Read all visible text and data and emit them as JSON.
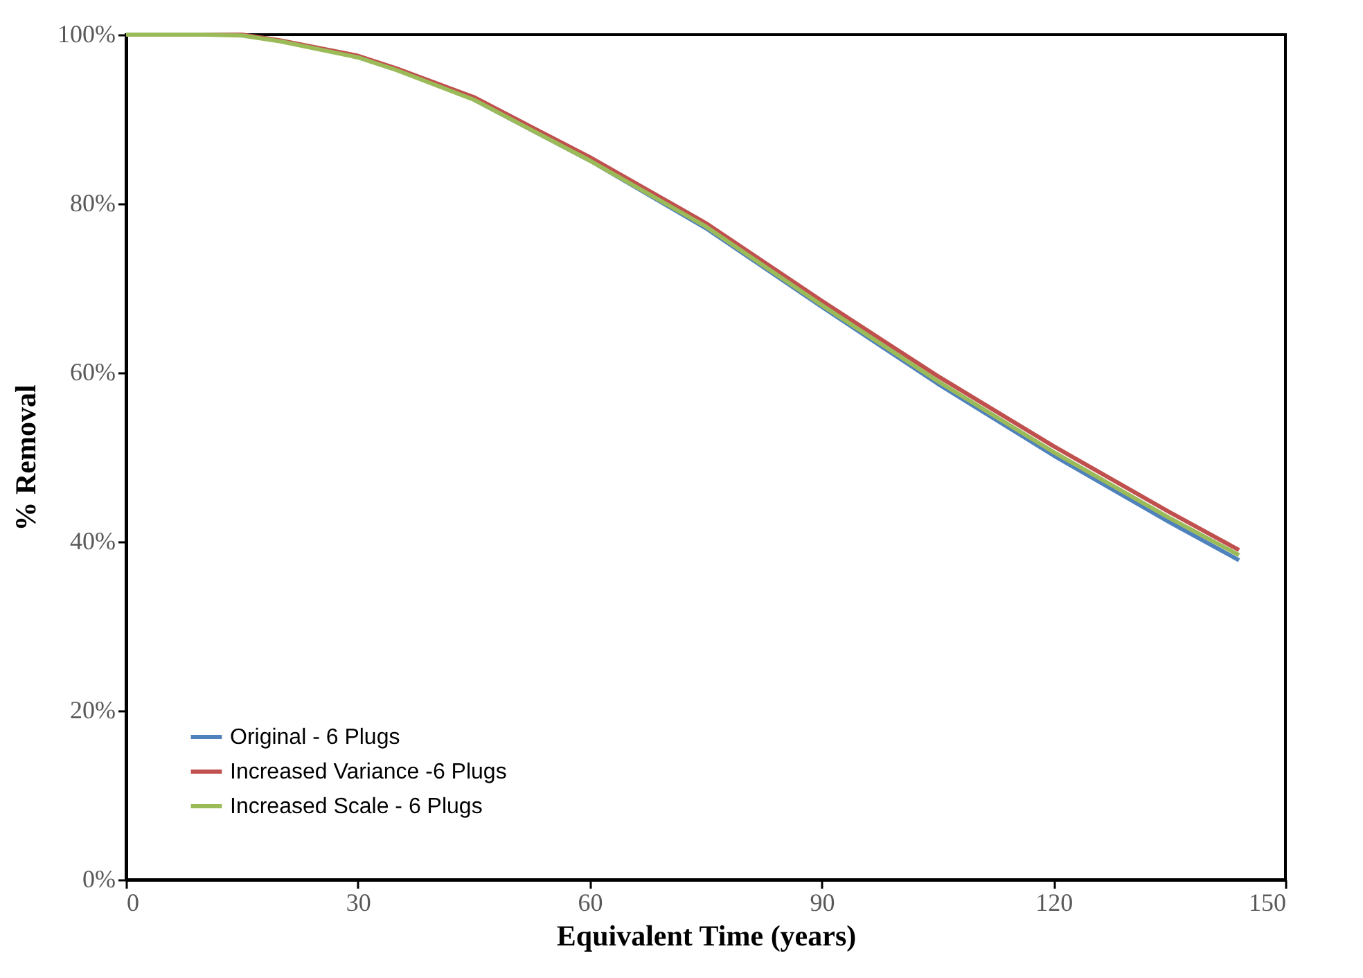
{
  "chart_data": {
    "type": "line",
    "xlabel": "Equivalent Time (years)",
    "ylabel": "% Removal",
    "x": [
      0,
      10,
      15,
      20,
      30,
      35,
      45,
      60,
      75,
      90,
      105,
      120,
      135,
      144
    ],
    "series": [
      {
        "name": "Original - 6 Plugs",
        "color": "#4f81bd",
        "values": [
          null,
          null,
          null,
          null,
          null,
          null,
          92.3,
          85.1,
          77.1,
          67.8,
          58.7,
          50.2,
          42.3,
          37.8
        ]
      },
      {
        "name": "Increased Variance -6 Plugs",
        "color": "#c0504d",
        "values": [
          100,
          100,
          100,
          99.3,
          97.5,
          96.0,
          92.6,
          85.5,
          77.7,
          68.5,
          59.6,
          51.3,
          43.5,
          39.0
        ]
      },
      {
        "name": "Increased Scale - 6 Plugs",
        "color": "#9bbb59",
        "values": [
          100,
          100,
          99.9,
          99.2,
          97.3,
          95.8,
          92.3,
          85.1,
          77.3,
          68.0,
          59.0,
          50.6,
          42.8,
          38.4
        ]
      }
    ],
    "xlim": [
      0,
      150
    ],
    "xticks": [
      0,
      30,
      60,
      90,
      120,
      150
    ],
    "ylim": [
      0,
      100
    ],
    "yticks": [
      {
        "value": 0,
        "label": "0%"
      },
      {
        "value": 20,
        "label": "20%"
      },
      {
        "value": 40,
        "label": "40%"
      },
      {
        "value": 60,
        "label": "60%"
      },
      {
        "value": 80,
        "label": "80%"
      },
      {
        "value": 100,
        "label": "100%"
      }
    ],
    "grid": false,
    "legend": "bottom left",
    "marker": "none",
    "line_style": "solid"
  }
}
